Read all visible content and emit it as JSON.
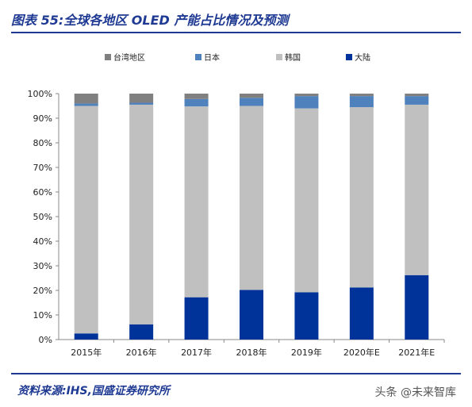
{
  "figure": {
    "title": "图表 55:全球各地区 OLED 产能占比情况及预测",
    "source": "资料来源:IHS,国盛证券研究所",
    "watermark": "头条 @未来智库"
  },
  "chart_data": {
    "type": "bar",
    "stacked": true,
    "categories": [
      "2015年",
      "2016年",
      "2017年",
      "2018年",
      "2019年",
      "2020年E",
      "2021年E"
    ],
    "series": [
      {
        "name": "大陆",
        "color": "#003399",
        "values": [
          2.5,
          6.2,
          17.2,
          20.2,
          19.2,
          21.2,
          26.2
        ]
      },
      {
        "name": "韩国",
        "color": "#c0c0c0",
        "values": [
          92.5,
          89.3,
          77.6,
          74.8,
          74.8,
          73.3,
          69.3
        ]
      },
      {
        "name": "日本",
        "color": "#4f81bd",
        "values": [
          1.0,
          0.8,
          3.0,
          3.3,
          5.0,
          4.5,
          3.5
        ]
      },
      {
        "name": "台湾地区",
        "color": "#808080",
        "values": [
          4.0,
          3.7,
          2.2,
          1.7,
          1.0,
          1.0,
          1.0
        ]
      }
    ],
    "legend_order": [
      "台湾地区",
      "日本",
      "韩国",
      "大陆"
    ],
    "ylim": [
      0,
      100
    ],
    "yticks": [
      "0%",
      "10%",
      "20%",
      "30%",
      "40%",
      "50%",
      "60%",
      "70%",
      "80%",
      "90%",
      "100%"
    ],
    "legend_position": "top",
    "grid": false
  }
}
